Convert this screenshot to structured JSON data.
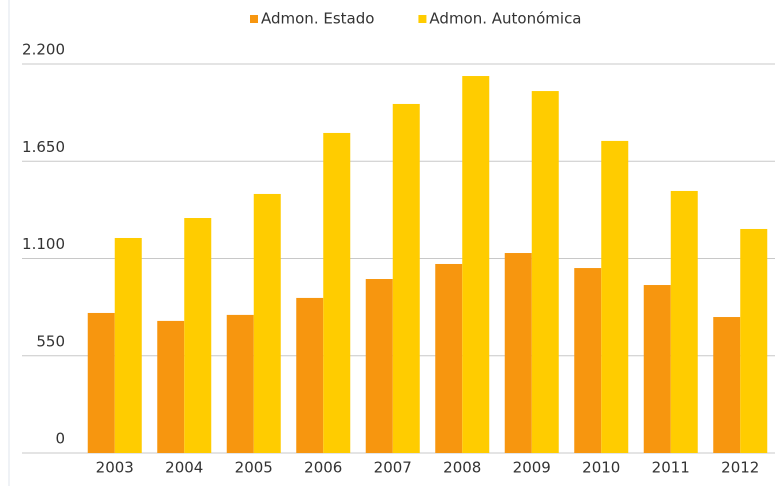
{
  "chart_data": {
    "type": "bar",
    "categories": [
      "2003",
      "2004",
      "2005",
      "2006",
      "2007",
      "2008",
      "2009",
      "2010",
      "2011",
      "2012"
    ],
    "series": [
      {
        "name": "Admon. Estado",
        "color": "#f7960f",
        "values": [
          792,
          747,
          781,
          877,
          984,
          1069,
          1131,
          1046,
          950,
          769
        ]
      },
      {
        "name": "Admon. Autonómica",
        "color": "#ffcc00",
        "values": [
          1216,
          1329,
          1465,
          1810,
          1974,
          2132,
          2047,
          1765,
          1482,
          1267
        ]
      }
    ],
    "ylim": [
      0,
      2200
    ],
    "yticks": [
      0,
      550,
      {
        "value": 1100,
        "label": "1.100"
      },
      {
        "value": 1650,
        "label": "1.650"
      },
      {
        "value": 2200,
        "label": "2.200"
      }
    ],
    "grid": true,
    "legend": "top"
  }
}
